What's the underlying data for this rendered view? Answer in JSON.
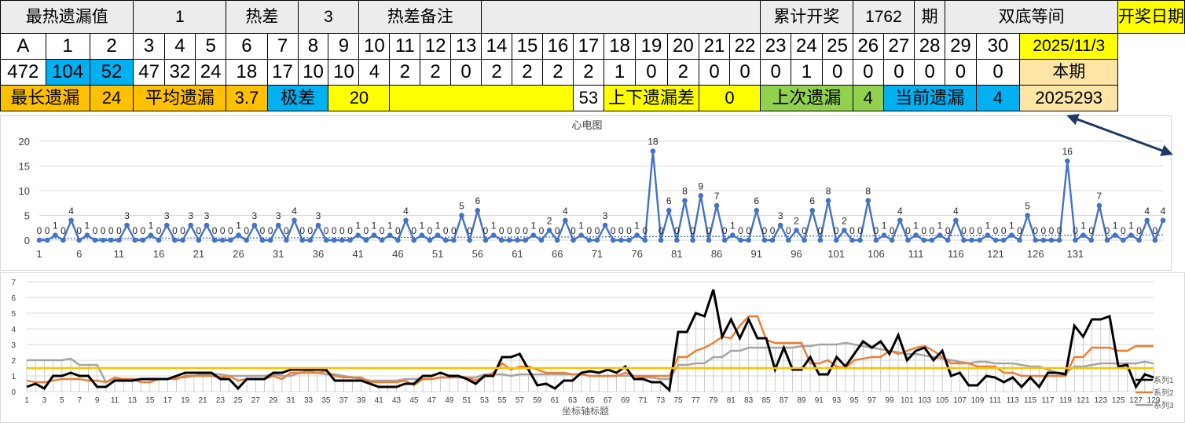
{
  "header": {
    "title": "最热遗漏值",
    "hot_val": "1",
    "hot_diff_label": "热差",
    "hot_diff_val": "3",
    "hot_note_label": "热差备注",
    "cum_label": "累计开奖",
    "cum_val": "1762",
    "period_label": "期",
    "pattern_label": "双底等间",
    "date_label": "开奖日期"
  },
  "cols": [
    "A",
    "1",
    "2",
    "3",
    "4",
    "5",
    "6",
    "7",
    "8",
    "9",
    "10",
    "11",
    "12",
    "13",
    "14",
    "15",
    "16",
    "17",
    "18",
    "19",
    "20",
    "21",
    "22",
    "23",
    "24",
    "25",
    "26",
    "27",
    "28",
    "29",
    "30"
  ],
  "date_val": "2025/11/3",
  "vals": [
    "472",
    "104",
    "52",
    "47",
    "32",
    "24",
    "18",
    "17",
    "10",
    "10",
    "4",
    "2",
    "2",
    "0",
    "2",
    "2",
    "2",
    "2",
    "1",
    "0",
    "2",
    "0",
    "0",
    "0",
    "1",
    "0",
    "0",
    "0",
    "0",
    "0",
    "0"
  ],
  "current_label": "本期",
  "stats": {
    "max_label": "最长遗漏",
    "max_val": "24",
    "avg_label": "平均遗漏",
    "avg_val": "3.7",
    "range_label": "极差",
    "range_val": "20",
    "mid_val": "53",
    "diff_label": "上下遗漏差",
    "diff_val": "0",
    "last_label": "上次遗漏",
    "last_val": "4",
    "cur_label": "当前遗漏",
    "cur_val": "4",
    "issue": "2025293"
  },
  "colors": {
    "series_main": "#4472c4",
    "series_avg": "#4472c4",
    "black": "#000000",
    "orange": "#ed7d31",
    "gray": "#a5a5a5",
    "gold": "#ffc000",
    "arrow": "#1f3864"
  },
  "chart_data": [
    {
      "type": "line",
      "title": "心电图",
      "xlabel": "",
      "ylabel": "",
      "ylim": [
        0,
        20
      ],
      "yticks": [
        0,
        5,
        10,
        15,
        20
      ],
      "xticks": [
        1,
        6,
        11,
        16,
        21,
        26,
        31,
        36,
        41,
        46,
        51,
        56,
        61,
        66,
        71,
        76,
        81,
        86,
        91,
        96,
        101,
        106,
        111,
        116,
        121,
        126,
        131
      ],
      "trend_level": 0.8,
      "series": [
        {
          "values": [
            0,
            0,
            1,
            0,
            4,
            0,
            1,
            0,
            0,
            0,
            0,
            3,
            0,
            0,
            1,
            0,
            3,
            0,
            0,
            3,
            0,
            3,
            0,
            0,
            0,
            1,
            0,
            3,
            0,
            0,
            3,
            0,
            4,
            0,
            0,
            3,
            0,
            0,
            0,
            0,
            1,
            0,
            1,
            0,
            1,
            0,
            4,
            0,
            1,
            0,
            1,
            0,
            0,
            5,
            0,
            6,
            0,
            1,
            0,
            0,
            0,
            0,
            1,
            0,
            2,
            0,
            4,
            0,
            1,
            0,
            0,
            3,
            0,
            0,
            0,
            1,
            0,
            18,
            0,
            6,
            0,
            8,
            0,
            9,
            0,
            7,
            0,
            1,
            0,
            0,
            6,
            0,
            0,
            3,
            0,
            2,
            0,
            6,
            0,
            8,
            0,
            2,
            0,
            0,
            8,
            0,
            1,
            0,
            4,
            0,
            1,
            0,
            0,
            1,
            0,
            4,
            0,
            0,
            0,
            1,
            0,
            0,
            1,
            0,
            5,
            0,
            0,
            0,
            0,
            16,
            0,
            1,
            0,
            7,
            0,
            1,
            0,
            1,
            0,
            4,
            0,
            4
          ]
        }
      ]
    },
    {
      "type": "line",
      "title": "",
      "xlabel": "坐标轴标题",
      "ylabel": "",
      "ylim": [
        0,
        7
      ],
      "yticks": [
        0,
        1,
        2,
        3,
        4,
        5,
        6,
        7
      ],
      "xticks": [
        1,
        3,
        5,
        7,
        9,
        11,
        13,
        15,
        17,
        19,
        21,
        23,
        25,
        27,
        29,
        31,
        33,
        35,
        37,
        39,
        41,
        43,
        45,
        47,
        49,
        51,
        53,
        55,
        57,
        59,
        61,
        63,
        65,
        67,
        69,
        71,
        73,
        75,
        77,
        79,
        81,
        83,
        85,
        87,
        89,
        91,
        93,
        95,
        97,
        99,
        101,
        103,
        105,
        107,
        109,
        111,
        113,
        115,
        117,
        119,
        121,
        123,
        125,
        127,
        129
      ],
      "constant_level": 1.5,
      "series": [
        {
          "name": "系列1",
          "values": [
            0.3,
            0.5,
            0.2,
            1.0,
            1.0,
            1.2,
            1.0,
            1.0,
            0.3,
            0.3,
            0.7,
            0.7,
            0.7,
            0.8,
            0.8,
            0.8,
            0.8,
            1.0,
            1.2,
            1.2,
            1.2,
            1.2,
            0.8,
            0.8,
            0.2,
            0.8,
            0.8,
            0.8,
            1.2,
            1.2,
            1.4,
            1.4,
            1.4,
            1.4,
            1.4,
            0.7,
            0.7,
            0.7,
            0.7,
            0.5,
            0.3,
            0.3,
            0.3,
            0.5,
            0.5,
            1.0,
            1.0,
            1.2,
            1.0,
            1.0,
            0.8,
            0.5,
            1.0,
            1.0,
            2.2,
            2.2,
            2.4,
            1.4,
            0.4,
            0.5,
            0.2,
            0.7,
            0.7,
            1.2,
            1.3,
            1.2,
            1.4,
            1.2,
            1.6,
            0.8,
            0.8,
            0.6,
            0.6,
            0.1,
            3.8,
            3.8,
            5.0,
            4.8,
            6.5,
            3.5,
            4.6,
            3.4,
            4.6,
            3.4,
            3.4,
            1.4,
            2.8,
            1.4,
            1.4,
            2.2,
            1.1,
            1.1,
            2.2,
            1.6,
            2.4,
            3.2,
            2.8,
            3.2,
            2.4,
            3.6,
            2.0,
            2.6,
            2.8,
            2.0,
            2.6,
            1.0,
            1.2,
            0.4,
            0.4,
            1.0,
            0.9,
            0.6,
            0.9,
            0.3,
            0.9,
            0.3,
            1.2,
            1.2,
            1.1,
            4.2,
            3.5,
            4.6,
            4.6,
            4.8,
            1.6,
            1.7,
            0.3,
            1.1,
            0.9
          ]
        },
        {
          "name": "系列2",
          "values": [
            0.7,
            0.6,
            0.6,
            0.7,
            0.8,
            0.8,
            0.8,
            0.7,
            0.7,
            0.6,
            0.9,
            0.8,
            0.8,
            0.6,
            0.6,
            0.8,
            0.8,
            0.8,
            1.0,
            1.0,
            1.0,
            1.0,
            0.9,
            1.0,
            0.7,
            0.8,
            0.8,
            0.8,
            1.0,
            0.8,
            1.2,
            1.2,
            1.2,
            1.2,
            1.3,
            1.0,
            0.9,
            0.9,
            0.9,
            0.6,
            0.6,
            0.6,
            0.6,
            0.7,
            0.4,
            0.8,
            0.8,
            0.9,
            0.9,
            1.0,
            0.9,
            0.7,
            1.0,
            1.2,
            1.8,
            1.4,
            1.6,
            1.6,
            1.4,
            1.2,
            1.2,
            1.2,
            1.1,
            1.1,
            1.0,
            1.0,
            1.0,
            1.0,
            1.2,
            1.0,
            1.0,
            1.0,
            1.0,
            1.0,
            2.2,
            2.2,
            2.6,
            2.8,
            3.1,
            3.5,
            3.4,
            4.2,
            4.8,
            4.8,
            3.3,
            3.1,
            3.1,
            3.1,
            3.1,
            1.8,
            1.8,
            2.0,
            1.6,
            1.5,
            2.0,
            2.1,
            2.2,
            2.2,
            2.6,
            2.4,
            2.6,
            2.8,
            2.9,
            2.6,
            2.2,
            1.8,
            1.8,
            1.8,
            1.6,
            1.6,
            1.6,
            1.2,
            1.2,
            1.0,
            1.0,
            1.0,
            1.0,
            1.0,
            1.0,
            2.2,
            2.2,
            2.8,
            2.8,
            2.8,
            2.6,
            2.6,
            2.9,
            2.9,
            2.9
          ]
        },
        {
          "name": "系列3",
          "values": [
            2.0,
            2.0,
            2.0,
            2.0,
            2.0,
            2.1,
            1.7,
            1.7,
            1.7,
            0.6,
            0.8,
            0.8,
            0.8,
            0.8,
            0.8,
            0.8,
            0.8,
            0.9,
            0.9,
            1.0,
            1.1,
            1.1,
            1.1,
            1.0,
            1.0,
            1.0,
            1.0,
            1.0,
            1.1,
            1.0,
            1.0,
            1.2,
            1.3,
            1.2,
            1.1,
            1.1,
            1.0,
            0.9,
            0.8,
            0.7,
            0.7,
            0.7,
            0.7,
            0.8,
            0.8,
            0.8,
            0.8,
            0.9,
            0.9,
            0.9,
            0.9,
            0.9,
            1.1,
            1.1,
            1.1,
            1.0,
            1.1,
            1.1,
            1.1,
            1.1,
            1.1,
            1.1,
            1.1,
            1.1,
            1.0,
            1.0,
            1.0,
            1.0,
            1.0,
            1.0,
            0.9,
            0.9,
            0.8,
            0.8,
            1.7,
            1.7,
            1.8,
            1.8,
            2.2,
            2.2,
            2.6,
            2.6,
            2.8,
            2.8,
            2.8,
            2.8,
            2.8,
            2.8,
            2.9,
            2.9,
            3.0,
            3.0,
            3.0,
            3.1,
            3.0,
            2.9,
            2.8,
            2.7,
            2.6,
            2.5,
            2.4,
            2.4,
            2.3,
            2.2,
            2.1,
            2.0,
            1.9,
            1.8,
            1.9,
            1.9,
            1.8,
            1.8,
            1.8,
            1.7,
            1.6,
            1.6,
            1.4,
            1.2,
            1.2,
            1.6,
            1.6,
            1.7,
            1.8,
            1.8,
            1.8,
            1.8,
            1.8,
            1.9,
            1.8
          ]
        }
      ]
    }
  ]
}
